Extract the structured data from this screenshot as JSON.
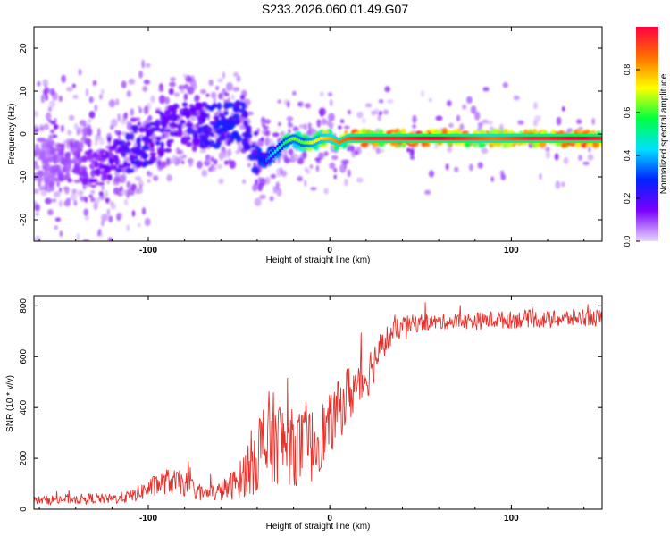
{
  "page_title": "S233.2026.060.01.49.G07",
  "chart_data": [
    {
      "type": "heatmap",
      "title": "S233.2026.060.01.49.G07",
      "xlabel": "Height of straight line (km)",
      "ylabel": "Frequency (Hz)",
      "xlim": [
        -163,
        150
      ],
      "ylim": [
        -25,
        25
      ],
      "x_ticks": [
        -100,
        0,
        100
      ],
      "y_ticks": [
        -20,
        -10,
        0,
        10,
        20
      ],
      "colorbar": {
        "label": "Normalized spectral amplitude",
        "range": [
          0.0,
          1.0
        ],
        "ticks": [
          "0.0",
          "0.2",
          "0.4",
          "0.6",
          "0.8"
        ],
        "colors": [
          "#e8d8ff",
          "#7b00ff",
          "#0022ff",
          "#00e0ff",
          "#00ff40",
          "#ffff00",
          "#ff7000",
          "#ff0040"
        ]
      },
      "ridge": {
        "x": [
          -163,
          -150,
          -140,
          -130,
          -120,
          -110,
          -100,
          -90,
          -80,
          -70,
          -60,
          -50,
          -45,
          -40,
          -35,
          -30,
          -25,
          -20,
          -15,
          -10,
          -5,
          0,
          5,
          10,
          20,
          30,
          40,
          50,
          60,
          70,
          80,
          90,
          100,
          110,
          120,
          130,
          140,
          150
        ],
        "frequency": [
          -6,
          -7,
          -7,
          -6,
          -5,
          -4,
          -2,
          1,
          2,
          2,
          2,
          4,
          0,
          -5,
          -6,
          -4,
          -2,
          -1,
          -2,
          -2,
          -1,
          -1,
          -2,
          -1,
          -1,
          -1,
          -1,
          -1,
          -1,
          -1,
          -1,
          -1,
          -1,
          -1,
          -1,
          -1,
          -1,
          -1
        ],
        "amplitude": [
          0.08,
          0.1,
          0.12,
          0.15,
          0.2,
          0.25,
          0.25,
          0.2,
          0.2,
          0.25,
          0.3,
          0.3,
          0.25,
          0.3,
          0.35,
          0.45,
          0.55,
          0.65,
          0.6,
          0.7,
          0.75,
          0.8,
          0.85,
          0.9,
          0.95,
          0.95,
          0.95,
          1.0,
          1.0,
          0.95,
          0.9,
          0.85,
          0.9,
          0.95,
          0.95,
          1.0,
          1.0,
          0.95
        ]
      }
    },
    {
      "type": "line",
      "xlabel": "Height of straight line (km)",
      "ylabel": "SNR (10 * v/v)",
      "xlim": [
        -163,
        150
      ],
      "ylim": [
        0,
        840
      ],
      "x_ticks": [
        -100,
        0,
        100
      ],
      "y_ticks": [
        0,
        200,
        400,
        600,
        800
      ],
      "series": [
        {
          "name": "SNR",
          "color": "#e8302a",
          "x": [
            -163,
            -150,
            -140,
            -130,
            -120,
            -110,
            -100,
            -90,
            -80,
            -70,
            -60,
            -50,
            -40,
            -35,
            -30,
            -20,
            -10,
            0,
            10,
            20,
            30,
            40,
            50,
            60,
            70,
            80,
            90,
            100,
            110,
            120,
            130,
            140,
            150
          ],
          "mean": [
            35,
            38,
            40,
            42,
            40,
            50,
            80,
            110,
            100,
            60,
            70,
            110,
            220,
            250,
            280,
            240,
            250,
            330,
            450,
            520,
            660,
            720,
            735,
            735,
            740,
            740,
            745,
            745,
            750,
            745,
            750,
            755,
            750
          ],
          "noise": [
            15,
            20,
            20,
            20,
            20,
            25,
            40,
            50,
            50,
            30,
            40,
            70,
            160,
            220,
            180,
            150,
            150,
            120,
            120,
            100,
            60,
            40,
            35,
            30,
            30,
            35,
            35,
            35,
            35,
            35,
            35,
            35,
            35
          ]
        }
      ]
    }
  ]
}
